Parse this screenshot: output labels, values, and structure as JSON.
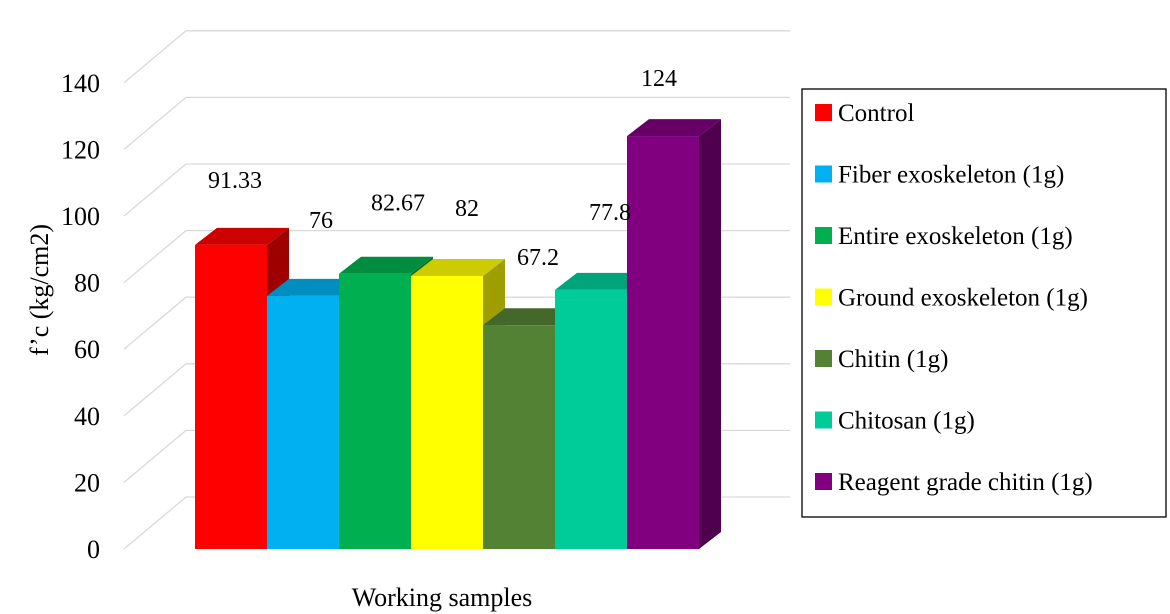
{
  "chart_data": {
    "type": "bar",
    "categories": [
      "Working samples"
    ],
    "series": [
      {
        "name": "Control",
        "value": 91.33,
        "label": "91.33",
        "color": "#ff0000"
      },
      {
        "name": "Fiber exoskeleton (1g)",
        "value": 76,
        "label": "76",
        "color": "#00b0f0"
      },
      {
        "name": "Entire exoskeleton (1g)",
        "value": 82.67,
        "label": "82.67",
        "color": "#00b050"
      },
      {
        "name": "Ground exoskeleton (1g)",
        "value": 82,
        "label": "82",
        "color": "#ffff00"
      },
      {
        "name": "Chitin (1g)",
        "value": 67.2,
        "label": "67.2",
        "color": "#548235"
      },
      {
        "name": "Chitosan (1g)",
        "value": 77.8,
        "label": "77.8",
        "color": "#00cc99"
      },
      {
        "name": "Reagent grade chitin (1g)",
        "value": 124,
        "label": "124",
        "color": "#800080"
      }
    ],
    "title": "",
    "xlabel": "Working samples",
    "ylabel": "f’c (kg/cm2)",
    "ylim": [
      0,
      140
    ],
    "yticks": [
      "0",
      "20",
      "40",
      "60",
      "80",
      "100",
      "120",
      "140"
    ],
    "grid": true,
    "style": "3d",
    "legend_position": "right"
  }
}
